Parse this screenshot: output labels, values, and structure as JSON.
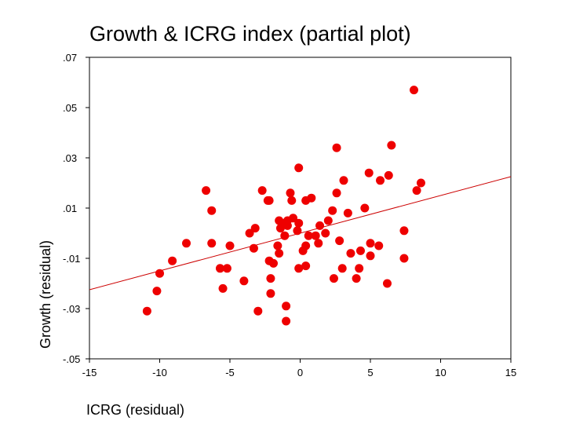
{
  "chart_data": {
    "type": "scatter",
    "title": "Growth & ICRG index (partial plot)",
    "xlabel": "ICRG (residual)",
    "ylabel": "Growth (residual)",
    "xlim": [
      -15,
      15
    ],
    "ylim": [
      -0.05,
      0.07
    ],
    "x_ticks": [
      -15,
      -10,
      -5,
      0,
      5,
      10,
      15
    ],
    "x_tick_labels": [
      "-15",
      "-10",
      "-5",
      "0",
      "5",
      "10",
      "15"
    ],
    "y_ticks": [
      0.07,
      0.05,
      0.03,
      0.01,
      -0.01,
      -0.03,
      -0.05
    ],
    "y_tick_labels": [
      ".07",
      ".05",
      ".03",
      ".01",
      "-.01",
      "-.03",
      "-.05"
    ],
    "grid": false,
    "colors": {
      "points": "#ee0000",
      "fit_line": "#cc0000",
      "axis": "#000000"
    },
    "series": [
      {
        "points": [
          [
            8.1,
            0.057
          ],
          [
            2.6,
            0.034
          ],
          [
            6.5,
            0.035
          ],
          [
            -0.1,
            0.026
          ],
          [
            4.9,
            0.024
          ],
          [
            6.3,
            0.023
          ],
          [
            3.1,
            0.021
          ],
          [
            5.7,
            0.021
          ],
          [
            8.6,
            0.02
          ],
          [
            8.3,
            0.017
          ],
          [
            -6.7,
            0.017
          ],
          [
            -2.7,
            0.017
          ],
          [
            2.6,
            0.016
          ],
          [
            -0.7,
            0.016
          ],
          [
            -2.3,
            0.013
          ],
          [
            -2.2,
            0.013
          ],
          [
            -0.6,
            0.013
          ],
          [
            0.4,
            0.013
          ],
          [
            0.8,
            0.014
          ],
          [
            -6.3,
            0.009
          ],
          [
            2.3,
            0.009
          ],
          [
            3.4,
            0.008
          ],
          [
            4.6,
            0.01
          ],
          [
            -1.5,
            0.005
          ],
          [
            -0.9,
            0.005
          ],
          [
            -0.5,
            0.006
          ],
          [
            -0.9,
            0.003
          ],
          [
            -0.2,
            0.001
          ],
          [
            -0.1,
            0.004
          ],
          [
            -1.1,
            0.004
          ],
          [
            -1.4,
            0.002
          ],
          [
            -3.2,
            0.002
          ],
          [
            -3.6,
            0.0
          ],
          [
            1.4,
            0.003
          ],
          [
            2.0,
            0.005
          ],
          [
            -1.1,
            -0.001
          ],
          [
            0.6,
            -0.001
          ],
          [
            1.1,
            -0.001
          ],
          [
            1.8,
            0.0
          ],
          [
            1.3,
            -0.004
          ],
          [
            -8.1,
            -0.004
          ],
          [
            -6.3,
            -0.004
          ],
          [
            -5.0,
            -0.005
          ],
          [
            -3.3,
            -0.006
          ],
          [
            -1.6,
            -0.005
          ],
          [
            0.4,
            -0.005
          ],
          [
            0.2,
            -0.007
          ],
          [
            -1.5,
            -0.008
          ],
          [
            2.8,
            -0.003
          ],
          [
            5.0,
            -0.004
          ],
          [
            5.6,
            -0.005
          ],
          [
            7.4,
            0.001
          ],
          [
            4.3,
            -0.007
          ],
          [
            3.6,
            -0.008
          ],
          [
            5.0,
            -0.009
          ],
          [
            7.4,
            -0.01
          ],
          [
            -9.1,
            -0.011
          ],
          [
            -2.2,
            -0.011
          ],
          [
            -1.9,
            -0.012
          ],
          [
            -10.0,
            -0.016
          ],
          [
            -5.7,
            -0.014
          ],
          [
            -5.2,
            -0.014
          ],
          [
            -0.1,
            -0.014
          ],
          [
            0.4,
            -0.013
          ],
          [
            3.0,
            -0.014
          ],
          [
            4.2,
            -0.014
          ],
          [
            2.4,
            -0.018
          ],
          [
            4.0,
            -0.018
          ],
          [
            -4.0,
            -0.019
          ],
          [
            6.2,
            -0.02
          ],
          [
            -5.5,
            -0.022
          ],
          [
            -2.1,
            -0.018
          ],
          [
            -10.2,
            -0.023
          ],
          [
            -2.1,
            -0.024
          ],
          [
            -1.0,
            -0.029
          ],
          [
            -10.9,
            -0.031
          ],
          [
            -3.0,
            -0.031
          ],
          [
            -1.0,
            -0.035
          ]
        ]
      }
    ],
    "fit_line": {
      "x": [
        -15,
        15
      ],
      "y": [
        -0.0225,
        0.0225
      ]
    }
  }
}
